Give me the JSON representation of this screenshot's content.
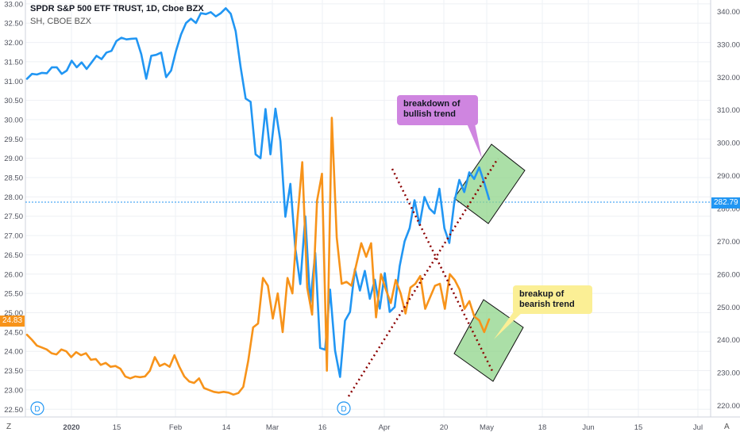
{
  "legend": {
    "primary": "SPDR S&P 500 ETF TRUST, 1D, Cboe BZX",
    "secondary": "SH, CBOE BZX"
  },
  "colors": {
    "spy": "#2196f3",
    "sh": "#f7931a",
    "trend": "#8b0000",
    "box_fill": "#8fd48a",
    "callout_purple": "#cf85e0",
    "callout_yellow": "#fbef95"
  },
  "badges": {
    "left_price": "24.83",
    "right_price": "282.79",
    "event_marker": "D"
  },
  "corner": {
    "left": "Z",
    "right": "A"
  },
  "annotations": {
    "breakdown": [
      "breakdown of",
      "bullish trend"
    ],
    "breakup": [
      "breakup of",
      "bearish trend"
    ]
  },
  "chart_data": {
    "type": "line",
    "title": "SPDR S&P 500 ETF TRUST, 1D, Cboe BZX",
    "x_ticks": [
      "2020",
      "15",
      "Feb",
      "14",
      "Mar",
      "16",
      "Apr",
      "20",
      "May",
      "18",
      "Jun",
      "15",
      "Jul"
    ],
    "y_left": {
      "ticks": [
        "22.50",
        "23.00",
        "23.50",
        "24.00",
        "24.50",
        "25.00",
        "25.50",
        "26.00",
        "26.50",
        "27.00",
        "27.50",
        "28.00",
        "28.50",
        "29.00",
        "29.50",
        "30.00",
        "30.50",
        "31.00",
        "31.50",
        "32.00",
        "32.50",
        "33.00"
      ],
      "range": [
        22.3,
        33.1
      ]
    },
    "y_right": {
      "ticks": [
        "220.00",
        "230.00",
        "240.00",
        "250.00",
        "260.00",
        "270.00",
        "280.00",
        "290.00",
        "300.00",
        "310.00",
        "320.00",
        "330.00",
        "340.00"
      ],
      "range": [
        216.5,
        343.5
      ]
    },
    "series": [
      {
        "name": "SPDR S&P 500 ETF TRUST",
        "axis": "right",
        "values": [
          319.5,
          321,
          320.8,
          321.3,
          321.2,
          323,
          323,
          321,
          322,
          325,
          323,
          324.5,
          322.5,
          324.5,
          326.5,
          325.5,
          327.5,
          328,
          331,
          332,
          331.5,
          331.7,
          331.8,
          327,
          319.5,
          326.5,
          326.8,
          327.5,
          320,
          322,
          328,
          333,
          336.5,
          337.8,
          336.5,
          339.5,
          339.2,
          339.8,
          338.5,
          339.5,
          341,
          339.3,
          334,
          323,
          313.5,
          312.5,
          296.5,
          295.3,
          310.3,
          296.5,
          310.4,
          300.5,
          277.5,
          287.5,
          268,
          257,
          277.6,
          251,
          266.5,
          237.5,
          237,
          255.3,
          236.7,
          228.7,
          245.8,
          248.5,
          261.5,
          255,
          261,
          252.5,
          258.3,
          249.5,
          260.3,
          248.5,
          250,
          262.5,
          270,
          274,
          282.5,
          275,
          283.5,
          280,
          278.5,
          286,
          274,
          269.5,
          282,
          288.7,
          285,
          291,
          289,
          292.5,
          288,
          282.79
        ]
      },
      {
        "name": "SH",
        "axis": "left",
        "values": [
          24.43,
          24.3,
          24.15,
          24.1,
          24.05,
          23.95,
          23.92,
          24.05,
          24,
          23.85,
          23.98,
          23.9,
          23.95,
          23.78,
          23.8,
          23.65,
          23.7,
          23.6,
          23.62,
          23.55,
          23.35,
          23.3,
          23.35,
          23.33,
          23.35,
          23.5,
          23.85,
          23.62,
          23.68,
          23.6,
          23.9,
          23.6,
          23.35,
          23.22,
          23.18,
          23.3,
          23.05,
          23.0,
          22.95,
          22.93,
          22.95,
          22.93,
          22.88,
          22.92,
          23.08,
          23.75,
          24.62,
          24.72,
          25.9,
          25.7,
          24.85,
          25.5,
          24.5,
          25.9,
          25.5,
          27.4,
          28.9,
          25.65,
          24.95,
          27.9,
          28.6,
          23.5,
          30.05,
          26.95,
          25.75,
          25.8,
          25.7,
          26.25,
          26.8,
          26.45,
          26.8,
          24.88,
          26.0,
          25.6,
          25.25,
          25.85,
          25.5,
          24.98,
          25.65,
          25.75,
          25.95,
          25.1,
          25.4,
          25.7,
          25.75,
          25.1,
          26.0,
          25.85,
          25.6,
          25.1,
          25.3,
          24.9,
          24.8,
          24.5,
          24.83
        ]
      }
    ]
  }
}
